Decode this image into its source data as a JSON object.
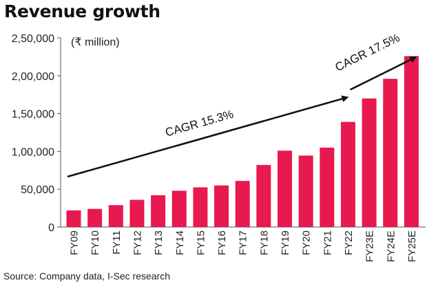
{
  "title": "Revenue growth",
  "source": "Source: Company data, I-Sec research",
  "chart_data": {
    "type": "bar",
    "title": "Revenue growth",
    "unit_label": "(₹ million)",
    "categories": [
      "FY09",
      "FY10",
      "FY11",
      "FY12",
      "FY13",
      "FY14",
      "FY15",
      "FY16",
      "FY17",
      "FY18",
      "FY19",
      "FY20",
      "FY21",
      "FY22",
      "FY23E",
      "FY24E",
      "FY25E"
    ],
    "values": [
      22000,
      24000,
      29000,
      36000,
      42000,
      48000,
      52500,
      55000,
      61000,
      82000,
      101000,
      94500,
      105000,
      139000,
      170000,
      196000,
      226000
    ],
    "ylim": [
      0,
      250000
    ],
    "yticks": [
      0,
      50000,
      100000,
      150000,
      200000,
      250000
    ],
    "ytick_labels": [
      "0",
      "50,000",
      "1,00,000",
      "1,50,000",
      "2,00,000",
      "2,50,000"
    ],
    "bar_color": "#e8194f",
    "grid": false,
    "annotations": [
      {
        "text": "CAGR 15.3%",
        "from": "FY09",
        "to": "FY22"
      },
      {
        "text": "CAGR 17.5%",
        "from": "FY22",
        "to": "FY25E"
      }
    ]
  }
}
